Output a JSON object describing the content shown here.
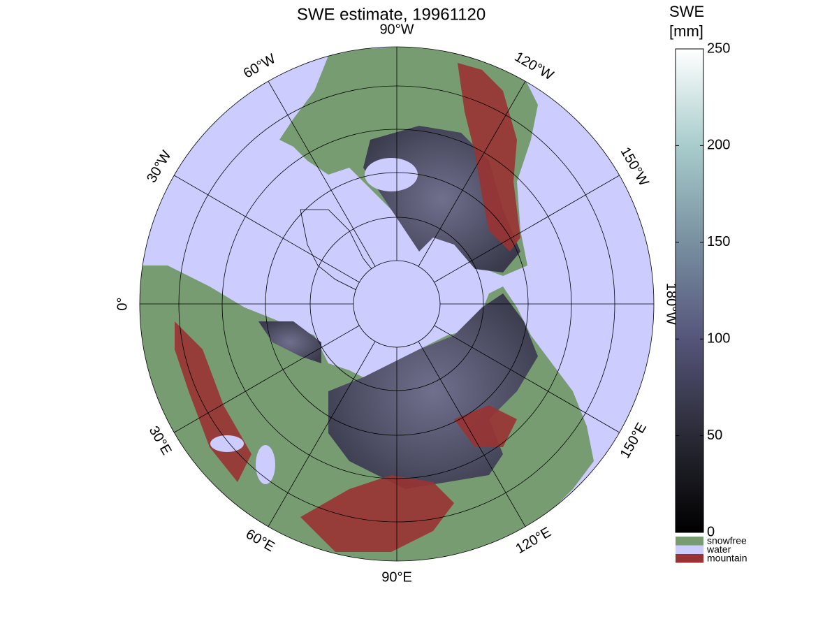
{
  "title": "SWE estimate, 19961120",
  "map": {
    "longitude_labels": [
      {
        "value": -90,
        "label": "90°W"
      },
      {
        "value": -120,
        "label": "120°W"
      },
      {
        "value": -150,
        "label": "150°W"
      },
      {
        "value": 180,
        "label": "180°W"
      },
      {
        "value": 150,
        "label": "150°E"
      },
      {
        "value": 120,
        "label": "120°E"
      },
      {
        "value": 90,
        "label": "90°E"
      },
      {
        "value": 60,
        "label": "60°E"
      },
      {
        "value": 30,
        "label": "30°E"
      },
      {
        "value": 0,
        "label": "0°"
      },
      {
        "value": -30,
        "label": "30°W"
      },
      {
        "value": -60,
        "label": "60°W"
      }
    ]
  },
  "colorbar": {
    "label_lines": [
      "SWE",
      "[mm]"
    ],
    "lim": [
      0,
      250
    ],
    "ticks": [
      0,
      50,
      100,
      150,
      200,
      250
    ],
    "legend": [
      {
        "name": "snowfree",
        "color": "#789c72"
      },
      {
        "name": "water",
        "color": "#ccccff"
      },
      {
        "name": "mountain",
        "color": "#993333"
      }
    ]
  }
}
